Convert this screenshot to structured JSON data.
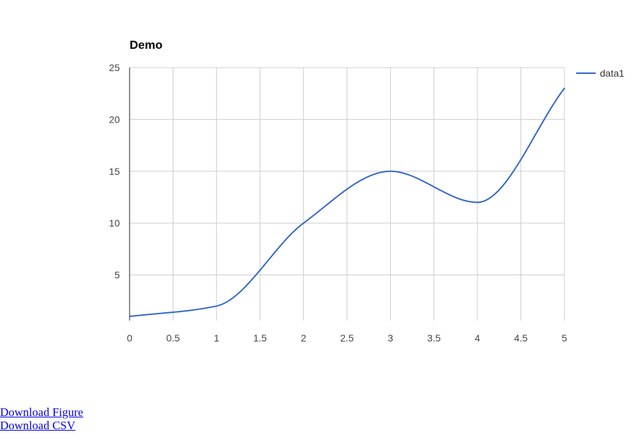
{
  "chart_data": {
    "type": "line",
    "title": "Demo",
    "xlabel": "",
    "ylabel": "",
    "xlim": [
      0,
      5
    ],
    "ylim": [
      0.6,
      25
    ],
    "x_ticks": [
      0,
      0.5,
      1,
      1.5,
      2,
      2.5,
      3,
      3.5,
      4,
      4.5,
      5
    ],
    "y_ticks": [
      5,
      10,
      15,
      20,
      25
    ],
    "grid": true,
    "legend_position": "right",
    "series": [
      {
        "name": "data1",
        "color": "#3366cc",
        "smooth": true,
        "x": [
          0,
          1,
          2,
          3,
          4,
          5
        ],
        "y": [
          1,
          2,
          10,
          15,
          12,
          23
        ]
      }
    ]
  },
  "links": {
    "download_figure": "Download Figure",
    "download_csv": "Download CSV"
  }
}
